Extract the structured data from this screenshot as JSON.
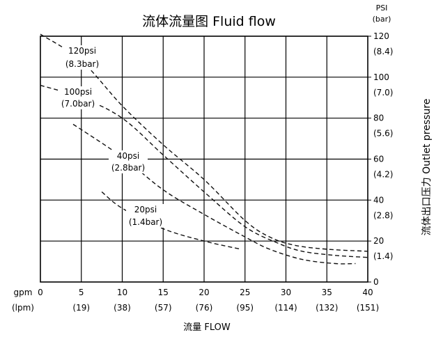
{
  "chart_data": {
    "type": "line",
    "title": "流体流量图 Fluid flow",
    "xlabel": "流量 FLOW",
    "ylabel": "流体出口压力 Outlet pressure",
    "x_unit_1": "gpm",
    "x_unit_2": "(lpm)",
    "y_unit_1": "PSI",
    "y_unit_2": "(bar)",
    "xlim": [
      0,
      40
    ],
    "ylim": [
      0,
      120
    ],
    "x_ticks": [
      {
        "v": 0,
        "gpm": "0",
        "lpm": ""
      },
      {
        "v": 5,
        "gpm": "5",
        "lpm": "(19)"
      },
      {
        "v": 10,
        "gpm": "10",
        "lpm": "(38)"
      },
      {
        "v": 15,
        "gpm": "15",
        "lpm": "(57)"
      },
      {
        "v": 20,
        "gpm": "20",
        "lpm": "(76)"
      },
      {
        "v": 25,
        "gpm": "25",
        "lpm": "(95)"
      },
      {
        "v": 30,
        "gpm": "30",
        "lpm": "(114)"
      },
      {
        "v": 35,
        "gpm": "35",
        "lpm": "(132)"
      },
      {
        "v": 40,
        "gpm": "40",
        "lpm": "(151)"
      }
    ],
    "y_ticks": [
      {
        "v": 0,
        "psi": "0",
        "bar": ""
      },
      {
        "v": 20,
        "psi": "20",
        "bar": "(1.4)"
      },
      {
        "v": 40,
        "psi": "40",
        "bar": "(2.8)"
      },
      {
        "v": 60,
        "psi": "60",
        "bar": "(4.2)"
      },
      {
        "v": 80,
        "psi": "80",
        "bar": "(5.6)"
      },
      {
        "v": 100,
        "psi": "100",
        "bar": "(7.0)"
      },
      {
        "v": 120,
        "psi": "120",
        "bar": "(8.4)"
      }
    ],
    "grid": true,
    "line_style": "dashed",
    "series": [
      {
        "name": "120psi",
        "name2": "(8.3bar)",
        "x": [
          0,
          5,
          10,
          15,
          20,
          25,
          28,
          31,
          35,
          40
        ],
        "y": [
          121,
          108,
          86,
          67,
          50,
          30,
          22,
          18,
          16,
          15
        ]
      },
      {
        "name": "100psi",
        "name2": "(7.0bar)",
        "x": [
          0,
          5,
          10,
          15,
          20,
          25,
          29,
          32,
          36,
          40
        ],
        "y": [
          96,
          90,
          80,
          62,
          44,
          27,
          19,
          15,
          13,
          12
        ]
      },
      {
        "name": "40psi",
        "name2": "(2.8bar)",
        "x": [
          4,
          10,
          15,
          20,
          25,
          28,
          32,
          36,
          38.5
        ],
        "y": [
          77,
          61,
          45,
          33,
          22,
          16,
          11,
          9,
          9
        ]
      },
      {
        "name": "20psi",
        "name2": "(1.4bar)",
        "x": [
          7.5,
          10,
          15,
          20,
          24.5
        ],
        "y": [
          44,
          36,
          26,
          20,
          16
        ]
      }
    ]
  }
}
